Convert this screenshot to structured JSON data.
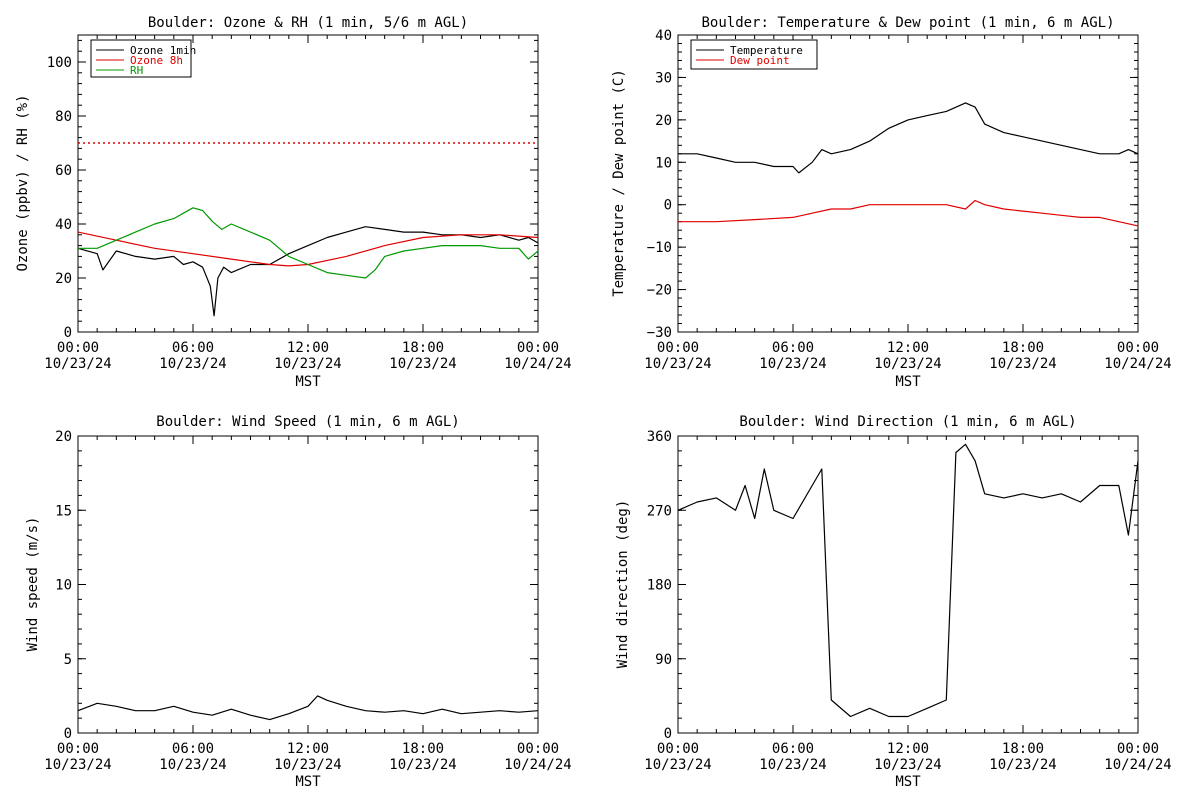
{
  "chart_data": [
    {
      "type": "line",
      "title": "Boulder: Ozone & RH (1 min, 5/6 m AGL)",
      "xlabel": "MST",
      "ylabel": "Ozone (ppbv) / RH (%)",
      "xlim": [
        "10/23/24 00:00",
        "10/24/24 00:00"
      ],
      "ylim": [
        0,
        110
      ],
      "yticks": [
        "0",
        "20",
        "40",
        "60",
        "80",
        "100"
      ],
      "xticks": [
        {
          "time": "00:00",
          "date": "10/23/24"
        },
        {
          "time": "06:00",
          "date": "10/23/24"
        },
        {
          "time": "12:00",
          "date": "10/23/24"
        },
        {
          "time": "18:00",
          "date": "10/23/24"
        },
        {
          "time": "00:00",
          "date": "10/24/24"
        }
      ],
      "legend_position": "top-left",
      "reference_line": {
        "y": 70,
        "style": "dotted",
        "color": "#e00000"
      },
      "series": [
        {
          "name": "Ozone 1min",
          "color": "#000000",
          "x": [
            0,
            1,
            1.3,
            2,
            3,
            4,
            5,
            5.5,
            6,
            6.5,
            6.9,
            7.1,
            7.3,
            7.6,
            8,
            9,
            10,
            11,
            12,
            13,
            14,
            15,
            16,
            17,
            18,
            19,
            20,
            21,
            22,
            23,
            23.5,
            24
          ],
          "y": [
            31,
            29,
            23,
            30,
            28,
            27,
            28,
            25,
            26,
            24,
            17,
            6,
            20,
            24,
            22,
            25,
            25,
            29,
            32,
            35,
            37,
            39,
            38,
            37,
            37,
            36,
            36,
            35,
            36,
            34,
            35,
            33
          ]
        },
        {
          "name": "Ozone 8h",
          "color": "#e00000",
          "x": [
            0,
            2,
            4,
            6,
            8,
            10,
            11,
            12,
            14,
            16,
            18,
            20,
            22,
            24
          ],
          "y": [
            37,
            34,
            31,
            29,
            27,
            25,
            24.5,
            25,
            28,
            32,
            35,
            36,
            36,
            35
          ]
        },
        {
          "name": "RH",
          "color": "#009900",
          "x": [
            0,
            1,
            2,
            3,
            4,
            5,
            5.5,
            6,
            6.5,
            7,
            7.5,
            8,
            9,
            10,
            11,
            12,
            13,
            14,
            15,
            15.5,
            16,
            17,
            18,
            19,
            20,
            21,
            22,
            23,
            23.5,
            24
          ],
          "y": [
            31,
            31,
            34,
            37,
            40,
            42,
            44,
            46,
            45,
            41,
            38,
            40,
            37,
            34,
            28,
            25,
            22,
            21,
            20,
            23,
            28,
            30,
            31,
            32,
            32,
            32,
            31,
            31,
            27,
            30
          ]
        }
      ]
    },
    {
      "type": "line",
      "title": "Boulder: Temperature & Dew point (1 min, 6 m AGL)",
      "xlabel": "MST",
      "ylabel": "Temperature / Dew point (C)",
      "xlim": [
        "10/23/24 00:00",
        "10/24/24 00:00"
      ],
      "ylim": [
        -30,
        40
      ],
      "yticks": [
        "−30",
        "−20",
        "−10",
        "0",
        "10",
        "20",
        "30",
        "40"
      ],
      "xticks": [
        {
          "time": "00:00",
          "date": "10/23/24"
        },
        {
          "time": "06:00",
          "date": "10/23/24"
        },
        {
          "time": "12:00",
          "date": "10/23/24"
        },
        {
          "time": "18:00",
          "date": "10/23/24"
        },
        {
          "time": "00:00",
          "date": "10/24/24"
        }
      ],
      "legend_position": "top-left",
      "series": [
        {
          "name": "Temperature",
          "color": "#000000",
          "x": [
            0,
            1,
            2,
            3,
            4,
            5,
            6,
            6.3,
            7,
            7.5,
            8,
            9,
            10,
            11,
            12,
            13,
            14,
            15,
            15.5,
            16,
            17,
            18,
            19,
            20,
            21,
            22,
            23,
            23.5,
            24
          ],
          "y": [
            12,
            12,
            11,
            10,
            10,
            9,
            9,
            7.5,
            10,
            13,
            12,
            13,
            15,
            18,
            20,
            21,
            22,
            24,
            23,
            19,
            17,
            16,
            15,
            14,
            13,
            12,
            12,
            13,
            12
          ]
        },
        {
          "name": "Dew point",
          "color": "#e00000",
          "x": [
            0,
            2,
            4,
            6,
            7,
            8,
            9,
            10,
            12,
            14,
            15,
            15.5,
            16,
            17,
            18,
            19,
            20,
            21,
            22,
            23,
            24
          ],
          "y": [
            -4,
            -4,
            -3.5,
            -3,
            -2,
            -1,
            -1,
            0,
            0,
            0,
            -1,
            1,
            0,
            -1,
            -1.5,
            -2,
            -2.5,
            -3,
            -3,
            -4,
            -5
          ]
        }
      ]
    },
    {
      "type": "line",
      "title": "Boulder: Wind Speed (1 min, 6 m AGL)",
      "xlabel": "MST",
      "ylabel": "Wind speed (m/s)",
      "xlim": [
        "10/23/24 00:00",
        "10/24/24 00:00"
      ],
      "ylim": [
        0,
        20
      ],
      "yticks": [
        "0",
        "5",
        "10",
        "15",
        "20"
      ],
      "xticks": [
        {
          "time": "00:00",
          "date": "10/23/24"
        },
        {
          "time": "06:00",
          "date": "10/23/24"
        },
        {
          "time": "12:00",
          "date": "10/23/24"
        },
        {
          "time": "18:00",
          "date": "10/23/24"
        },
        {
          "time": "00:00",
          "date": "10/24/24"
        }
      ],
      "series": [
        {
          "color": "#000000",
          "x": [
            0,
            1,
            2,
            3,
            4,
            5,
            6,
            7,
            8,
            9,
            10,
            11,
            12,
            12.5,
            13,
            14,
            15,
            16,
            17,
            18,
            19,
            20,
            21,
            22,
            23,
            24
          ],
          "y": [
            1.5,
            2.0,
            1.8,
            1.5,
            1.5,
            1.8,
            1.4,
            1.2,
            1.6,
            1.2,
            0.9,
            1.3,
            1.8,
            2.5,
            2.2,
            1.8,
            1.5,
            1.4,
            1.5,
            1.3,
            1.6,
            1.3,
            1.4,
            1.5,
            1.4,
            1.5
          ]
        }
      ]
    },
    {
      "type": "line",
      "title": "Boulder: Wind Direction (1 min, 6 m AGL)",
      "xlabel": "MST",
      "ylabel": "Wind direction (deg)",
      "xlim": [
        "10/23/24 00:00",
        "10/24/24 00:00"
      ],
      "ylim": [
        0,
        360
      ],
      "yticks": [
        "0",
        "90",
        "180",
        "270",
        "360"
      ],
      "xticks": [
        {
          "time": "00:00",
          "date": "10/23/24"
        },
        {
          "time": "06:00",
          "date": "10/23/24"
        },
        {
          "time": "12:00",
          "date": "10/23/24"
        },
        {
          "time": "18:00",
          "date": "10/23/24"
        },
        {
          "time": "00:00",
          "date": "10/24/24"
        }
      ],
      "series": [
        {
          "color": "#000000",
          "x": [
            0,
            1,
            2,
            3,
            3.5,
            4,
            4.5,
            5,
            6,
            7,
            7.5,
            8,
            9,
            10,
            11,
            12,
            13,
            14,
            14.5,
            15,
            15.5,
            16,
            17,
            18,
            19,
            20,
            21,
            22,
            23,
            23.5,
            24
          ],
          "y": [
            270,
            280,
            285,
            270,
            300,
            260,
            320,
            270,
            260,
            300,
            320,
            40,
            20,
            30,
            20,
            20,
            30,
            40,
            340,
            350,
            330,
            290,
            285,
            290,
            285,
            290,
            280,
            300,
            300,
            240,
            330
          ]
        }
      ]
    }
  ]
}
